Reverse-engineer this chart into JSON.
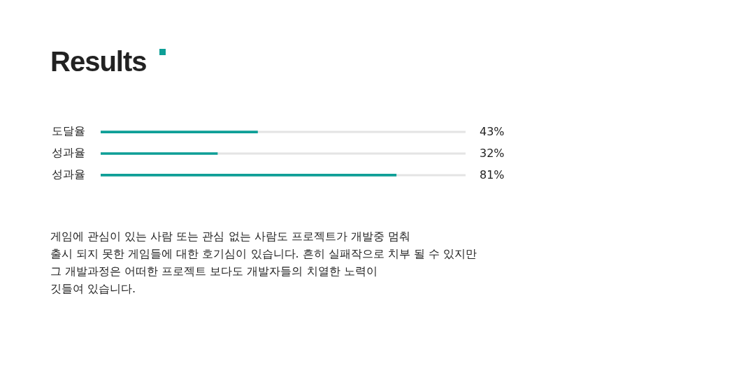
{
  "chart_data": {
    "type": "bar",
    "orientation": "horizontal",
    "title": "Results",
    "categories": [
      "도달율",
      "성과율",
      "성과율"
    ],
    "values": [
      43,
      32,
      81
    ],
    "value_labels": [
      "43%",
      "32%",
      "81%"
    ],
    "color": "#0e9f97",
    "xlim": [
      0,
      100
    ],
    "tick_labels": "y",
    "grid": false,
    "legend": false,
    "annotations": [
      "게임에 관심이 있는 사람 또는 관심 없는 사람도 프로젝트가 개발중 멈춰",
      "출시 되지 못한 게임들에 대한 호기심이 있습니다. 흔히 실패작으로 치부 될 수 있지만",
      "그 개발과정은 어떠한 프로젝트 보다도 개발자들의 치열한 노력이",
      "깃들여 있습니다."
    ]
  }
}
